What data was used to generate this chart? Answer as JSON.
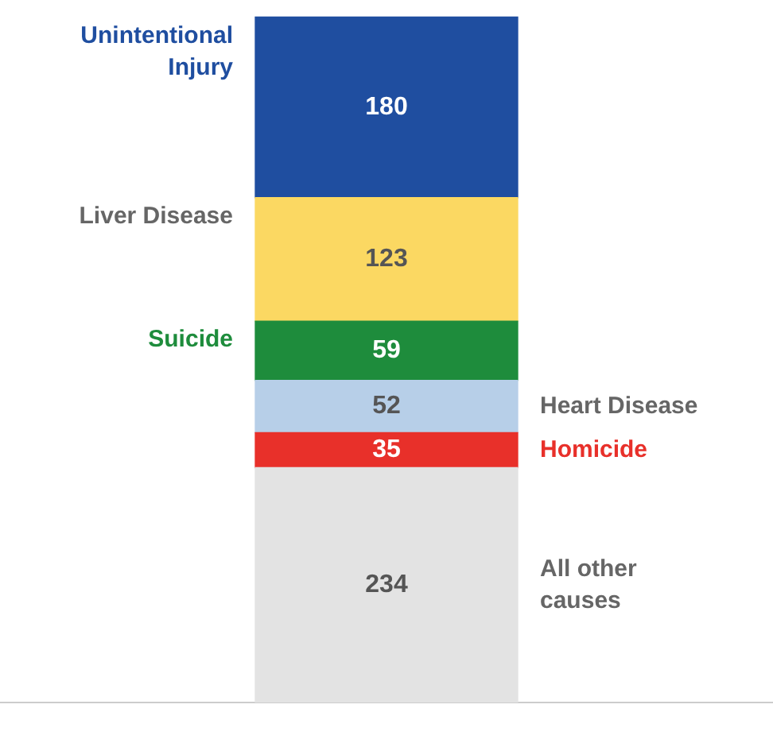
{
  "chart_data": {
    "type": "bar",
    "stacked": true,
    "categories": [
      null
    ],
    "data_labels": true,
    "legend": false,
    "series": [
      {
        "name": "All other causes",
        "color": "#e3e3e3",
        "values": [
          234
        ]
      },
      {
        "name": "Homicide",
        "color": "#e8302a",
        "values": [
          35
        ]
      },
      {
        "name": "Heart Disease",
        "color": "#b7cfe8",
        "values": [
          52
        ]
      },
      {
        "name": "Suicide",
        "color": "#1e8c3c",
        "values": [
          59
        ]
      },
      {
        "name": "Liver Disease",
        "color": "#fbd862",
        "values": [
          123
        ]
      },
      {
        "name": "Unintentional Injury",
        "color": "#1f4ea0",
        "values": [
          180
        ]
      }
    ]
  }
}
